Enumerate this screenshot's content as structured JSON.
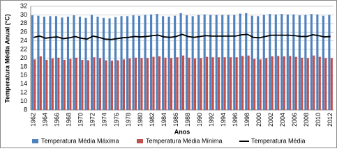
{
  "chart_data": {
    "type": "bar",
    "y_label": "Temperatura Média Anual (°C)",
    "x_label": "Anos",
    "categories": [
      "1962",
      null,
      "1964",
      null,
      "1966",
      null,
      "1968",
      null,
      "1970",
      null,
      "1972",
      null,
      "1974",
      null,
      "1976",
      null,
      "1978",
      null,
      "1980",
      null,
      "1982",
      null,
      "1984",
      null,
      "1986",
      null,
      "1988",
      null,
      "1990",
      null,
      "1992",
      null,
      "1994",
      null,
      "1996",
      null,
      "1998",
      null,
      "2000",
      null,
      "2002",
      null,
      "2004",
      null,
      "2006",
      null,
      "2008",
      null,
      "2010",
      null,
      "2012"
    ],
    "series": [
      {
        "name": "Temperatura Média Máxima",
        "color": "#4f81bd",
        "values": [
          29.9,
          29.8,
          29.6,
          29.7,
          29.7,
          29.4,
          29.6,
          29.9,
          29.6,
          29.3,
          30.0,
          29.6,
          29.3,
          29.2,
          29.5,
          29.7,
          29.7,
          29.9,
          29.8,
          30.0,
          30.1,
          30.2,
          29.7,
          29.6,
          29.8,
          30.4,
          29.9,
          29.7,
          30.0,
          30.1,
          30.0,
          30.0,
          30.0,
          30.0,
          30.0,
          30.3,
          30.4,
          29.8,
          29.7,
          30.0,
          30.2,
          30.1,
          30.2,
          30.1,
          30.1,
          29.9,
          30.0,
          30.2,
          30.1,
          29.8,
          30.0
        ]
      },
      {
        "name": "Temperatura Média Mínima",
        "color": "#c0504d",
        "values": [
          19.7,
          20.4,
          19.6,
          19.9,
          20.1,
          19.6,
          19.8,
          20.1,
          19.6,
          19.5,
          20.2,
          20.0,
          19.5,
          19.4,
          19.5,
          19.7,
          19.9,
          20.1,
          20.0,
          20.0,
          20.3,
          20.4,
          20.1,
          20.0,
          20.2,
          20.6,
          20.1,
          19.9,
          20.0,
          20.3,
          20.2,
          20.2,
          20.2,
          20.2,
          20.2,
          20.5,
          20.6,
          19.8,
          19.7,
          20.0,
          20.4,
          20.5,
          20.4,
          20.5,
          20.3,
          20.1,
          20.0,
          20.6,
          20.3,
          20.0,
          20.0
        ]
      },
      {
        "name": "Temperatura Média",
        "color": "#000000",
        "type": "line",
        "values": [
          24.8,
          25.1,
          24.6,
          24.8,
          24.9,
          24.5,
          24.7,
          25.0,
          24.6,
          24.4,
          25.1,
          24.8,
          24.4,
          24.3,
          24.5,
          24.7,
          24.8,
          25.0,
          24.9,
          25.0,
          25.2,
          25.3,
          24.9,
          24.8,
          25.0,
          25.5,
          25.0,
          24.8,
          25.0,
          25.2,
          25.1,
          25.1,
          25.1,
          25.1,
          25.1,
          25.4,
          25.5,
          24.8,
          24.7,
          25.0,
          25.3,
          25.3,
          25.3,
          25.3,
          25.2,
          25.0,
          25.0,
          25.4,
          25.2,
          24.9,
          25.0
        ]
      }
    ],
    "ylim": [
      8,
      32
    ],
    "yticks": [
      8,
      10,
      12,
      14,
      16,
      18,
      20,
      22,
      24,
      26,
      28,
      30,
      32
    ],
    "grid": true
  }
}
